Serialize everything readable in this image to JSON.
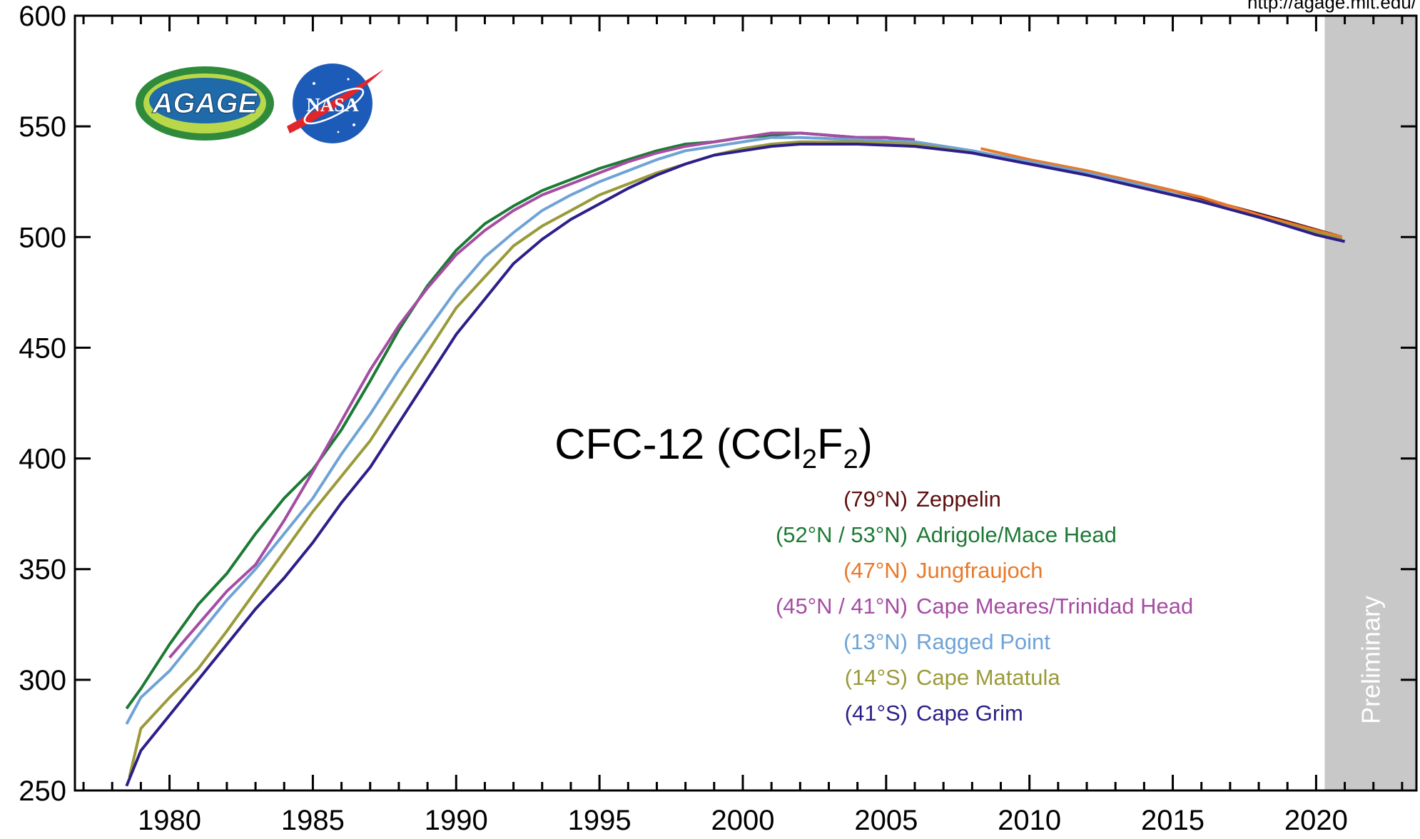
{
  "url_text": "http://agage.mit.edu/",
  "preliminary_label": "Preliminary",
  "logos": {
    "agage": "AGAGE",
    "nasa": "NASA"
  },
  "colors": {
    "zeppelin": "#5c0e0e",
    "adrigole_mace_head": "#1c7a34",
    "jungfraujoch": "#e8792a",
    "cape_meares_trinidad_head": "#a54ca3",
    "ragged_point": "#6fa3d6",
    "cape_matatula": "#9a9a3a",
    "cape_grim": "#2c1f8a",
    "preliminary_band": "#c8c8c8"
  },
  "chart_data": {
    "type": "line",
    "title": "CFC-12 (CCl2F2)",
    "title_parts": {
      "main": "CFC-12 (CCl",
      "sub1": "2",
      "mid": "F",
      "sub2": "2",
      "end": ")"
    },
    "xlabel": "",
    "ylabel": "",
    "xlim": [
      1976.7,
      2023.5
    ],
    "ylim": [
      250,
      600
    ],
    "x_ticks": [
      1980,
      1985,
      1990,
      1995,
      2000,
      2005,
      2010,
      2015,
      2020
    ],
    "y_ticks": [
      250,
      300,
      350,
      400,
      450,
      500,
      550,
      600
    ],
    "grid": false,
    "preliminary_range": [
      2020.3,
      2023.5
    ],
    "legend": [
      {
        "lat": "(79°N)",
        "name": "Zeppelin",
        "color_key": "zeppelin"
      },
      {
        "lat": "(52°N / 53°N)",
        "name": "Adrigole/Mace Head",
        "color_key": "adrigole_mace_head"
      },
      {
        "lat": "(47°N)",
        "name": "Jungfraujoch",
        "color_key": "jungfraujoch"
      },
      {
        "lat": "(45°N / 41°N)",
        "name": "Cape Meares/Trinidad Head",
        "color_key": "cape_meares_trinidad_head"
      },
      {
        "lat": "(13°N)",
        "name": "Ragged Point",
        "color_key": "ragged_point"
      },
      {
        "lat": "(14°S)",
        "name": "Cape Matatula",
        "color_key": "cape_matatula"
      },
      {
        "lat": "(41°S)",
        "name": "Cape Grim",
        "color_key": "cape_grim"
      }
    ],
    "series": [
      {
        "name": "Zeppelin",
        "color_key": "zeppelin",
        "x": [
          2011,
          2013,
          2015,
          2017,
          2019,
          2020.9
        ],
        "y": [
          531,
          527,
          521,
          514,
          507,
          500
        ]
      },
      {
        "name": "Adrigole/Mace Head",
        "color_key": "adrigole_mace_head",
        "x": [
          1978.5,
          1979,
          1980,
          1981,
          1982,
          1983,
          1984,
          1985,
          1986,
          1987,
          1988,
          1989,
          1990,
          1991,
          1992,
          1993,
          1994,
          1995,
          1996,
          1997,
          1998,
          1999,
          2000,
          2001,
          2002,
          2003,
          2004,
          2005,
          2006,
          2007,
          2008,
          2010,
          2012,
          2014,
          2016,
          2018,
          2020,
          2020.9
        ],
        "y": [
          287,
          296,
          316,
          334,
          348,
          366,
          382,
          395,
          413,
          435,
          458,
          478,
          494,
          506,
          514,
          521,
          526,
          531,
          535,
          539,
          542,
          543,
          545,
          546,
          547,
          546,
          545,
          545,
          543,
          541,
          539,
          534,
          529,
          523,
          516,
          509,
          502,
          499
        ]
      },
      {
        "name": "Jungfraujoch",
        "color_key": "jungfraujoch",
        "x": [
          2008.3,
          2010,
          2012,
          2014,
          2016,
          2018,
          2020,
          2020.9
        ],
        "y": [
          540,
          535,
          530,
          524,
          518,
          510,
          503,
          500
        ]
      },
      {
        "name": "Cape Meares/Trinidad Head",
        "color_key": "cape_meares_trinidad_head",
        "x": [
          1980,
          1981,
          1982,
          1983,
          1984,
          1985,
          1986,
          1987,
          1988,
          1989,
          1990,
          1991,
          1992,
          1993,
          1994,
          1995,
          1996,
          1997,
          1998,
          1999,
          2000,
          2001,
          2002,
          2003,
          2004,
          2005,
          2006
        ],
        "y": [
          310,
          325,
          340,
          352,
          372,
          394,
          417,
          440,
          460,
          477,
          492,
          503,
          512,
          519,
          524,
          529,
          534,
          538,
          541,
          543,
          545,
          547,
          547,
          546,
          545,
          545,
          544
        ]
      },
      {
        "name": "Ragged Point",
        "color_key": "ragged_point",
        "x": [
          1978.5,
          1979,
          1980,
          1981,
          1982,
          1983,
          1984,
          1985,
          1986,
          1987,
          1988,
          1989,
          1990,
          1991,
          1992,
          1993,
          1994,
          1995,
          1996,
          1997,
          1998,
          1999,
          2000,
          2001,
          2002,
          2004,
          2006,
          2008,
          2010,
          2012,
          2014,
          2016,
          2018,
          2020,
          2020.9
        ],
        "y": [
          280,
          292,
          304,
          320,
          336,
          350,
          366,
          382,
          402,
          420,
          440,
          458,
          476,
          491,
          502,
          512,
          519,
          525,
          530,
          535,
          539,
          541,
          543,
          545,
          545,
          544,
          543,
          539,
          534,
          529,
          523,
          516,
          509,
          502,
          499
        ]
      },
      {
        "name": "Cape Matatula",
        "color_key": "cape_matatula",
        "x": [
          1978.6,
          1979,
          1980,
          1981,
          1982,
          1983,
          1984,
          1985,
          1986,
          1987,
          1988,
          1989,
          1990,
          1991,
          1992,
          1993,
          1994,
          1995,
          1996,
          1997,
          1998,
          1999,
          2000,
          2001,
          2002,
          2004,
          2006,
          2008,
          2010,
          2012,
          2014,
          2016,
          2018,
          2020,
          2020.9
        ],
        "y": [
          256,
          278,
          292,
          305,
          322,
          340,
          358,
          376,
          392,
          408,
          428,
          448,
          468,
          482,
          496,
          505,
          512,
          519,
          524,
          529,
          533,
          537,
          540,
          542,
          543,
          543,
          542,
          538,
          533,
          528,
          522,
          516,
          509,
          502,
          499
        ]
      },
      {
        "name": "Cape Grim",
        "color_key": "cape_grim",
        "x": [
          1978.5,
          1979,
          1980,
          1981,
          1982,
          1983,
          1984,
          1985,
          1986,
          1987,
          1988,
          1989,
          1990,
          1991,
          1992,
          1993,
          1994,
          1995,
          1996,
          1997,
          1998,
          1999,
          2000,
          2001,
          2002,
          2004,
          2006,
          2008,
          2010,
          2012,
          2014,
          2016,
          2018,
          2020,
          2021
        ],
        "y": [
          252,
          268,
          284,
          300,
          316,
          332,
          346,
          362,
          380,
          396,
          416,
          436,
          456,
          472,
          488,
          499,
          508,
          515,
          522,
          528,
          533,
          537,
          539,
          541,
          542,
          542,
          541,
          538,
          533,
          528,
          522,
          516,
          509,
          501,
          498
        ]
      }
    ]
  }
}
